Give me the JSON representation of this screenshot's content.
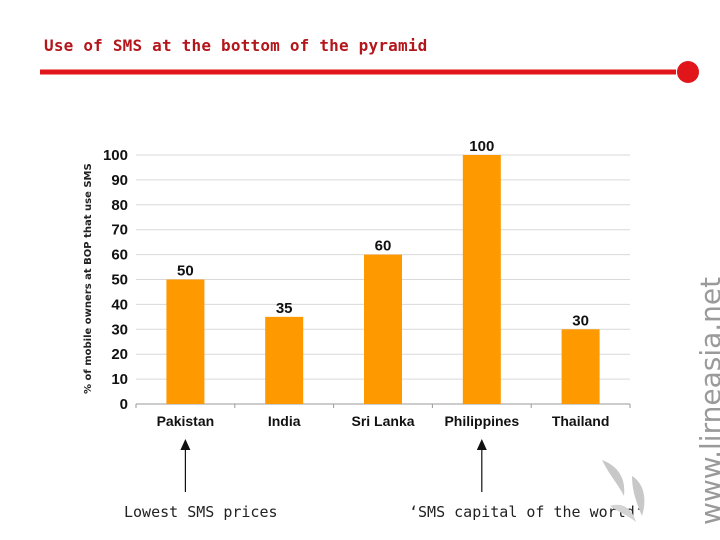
{
  "slide": {
    "title": "Use of SMS at the bottom of the pyramid",
    "accent_color": "#e0161b",
    "watermark": "www.lirneasia.net"
  },
  "chart_data": {
    "type": "bar",
    "title": "",
    "xlabel": "",
    "ylabel": "% of mobile owners at BOP that use SMS",
    "categories": [
      "Pakistan",
      "India",
      "Sri Lanka",
      "Philippines",
      "Thailand"
    ],
    "values": [
      50,
      35,
      60,
      100,
      30
    ],
    "data_labels": [
      "50",
      "35",
      "60",
      "100",
      "30"
    ],
    "ylim": [
      0,
      100
    ],
    "yticks": [
      "0",
      "10",
      "20",
      "30",
      "40",
      "50",
      "60",
      "70",
      "80",
      "90",
      "100"
    ],
    "grid": true,
    "bar_color": "#ff9900",
    "annotations": [
      {
        "text": "Lowest SMS prices",
        "category": "Pakistan"
      },
      {
        "text": "‘SMS capital of the world’",
        "category": "Philippines"
      }
    ]
  }
}
